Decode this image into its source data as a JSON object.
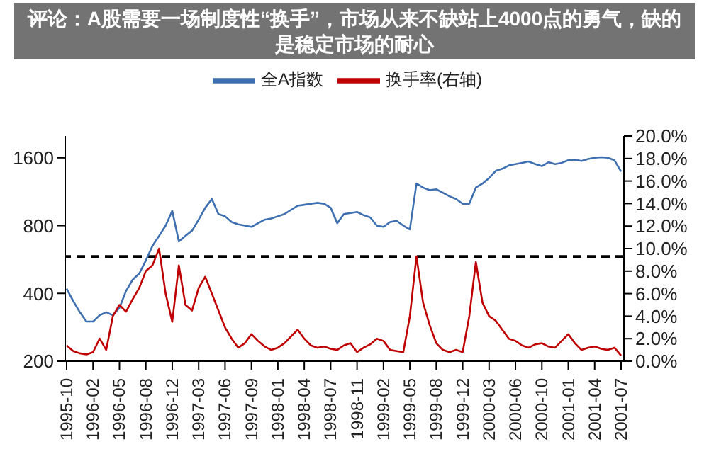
{
  "chart_data": {
    "type": "line",
    "categories": [
      "1995-10",
      null,
      null,
      null,
      "1996-02",
      null,
      null,
      null,
      "1996-05",
      null,
      null,
      null,
      "1996-08",
      null,
      null,
      null,
      "1996-12",
      null,
      null,
      null,
      "1997-03",
      null,
      null,
      null,
      "1997-06",
      null,
      null,
      null,
      "1997-09",
      null,
      null,
      null,
      "1998-01",
      null,
      null,
      null,
      "1998-04",
      null,
      null,
      null,
      "1998-07",
      null,
      null,
      null,
      "1998-11",
      null,
      null,
      null,
      "1999-02",
      null,
      null,
      null,
      "1999-05",
      null,
      null,
      null,
      "1999-08",
      null,
      null,
      null,
      "1999-12",
      null,
      null,
      null,
      "2000-03",
      null,
      null,
      null,
      "2000-06",
      null,
      null,
      null,
      "2000-10",
      null,
      null,
      null,
      "2001-01",
      null,
      null,
      null,
      "2001-04",
      null,
      null,
      null,
      "2001-07"
    ],
    "series": [
      {
        "name": "全A指数",
        "color": "#3e6fb0",
        "values": [
          420,
          370,
          330,
          300,
          300,
          320,
          330,
          320,
          345,
          410,
          460,
          490,
          560,
          650,
          720,
          800,
          930,
          680,
          720,
          760,
          850,
          960,
          1050,
          900,
          880,
          830,
          810,
          800,
          790,
          820,
          850,
          860,
          880,
          900,
          940,
          980,
          990,
          1000,
          1010,
          1000,
          960,
          820,
          900,
          910,
          920,
          890,
          870,
          800,
          790,
          830,
          840,
          800,
          770,
          1230,
          1180,
          1150,
          1160,
          1120,
          1080,
          1050,
          1000,
          1000,
          1180,
          1230,
          1300,
          1400,
          1430,
          1480,
          1500,
          1520,
          1540,
          1500,
          1470,
          1530,
          1500,
          1520,
          1560,
          1570,
          1550,
          1580,
          1600,
          1610,
          1600,
          1560,
          1390
        ]
      },
      {
        "name": "换手率(右轴)",
        "color": "#c00000",
        "axis": "y2",
        "values": [
          1.4,
          0.9,
          0.7,
          0.6,
          0.8,
          2.0,
          1.0,
          4.0,
          5.0,
          4.4,
          5.5,
          6.5,
          8.0,
          8.5,
          10.0,
          6.0,
          3.5,
          8.5,
          5.0,
          4.5,
          6.5,
          7.5,
          6.0,
          4.5,
          3.0,
          2.0,
          1.2,
          1.6,
          2.4,
          1.8,
          1.3,
          1.0,
          1.2,
          1.6,
          2.2,
          2.8,
          2.0,
          1.4,
          1.2,
          1.3,
          1.1,
          1.0,
          1.4,
          1.6,
          0.8,
          1.2,
          1.5,
          2.0,
          1.8,
          1.0,
          0.9,
          0.8,
          4.0,
          9.3,
          5.2,
          3.2,
          1.6,
          1.0,
          0.8,
          1.0,
          0.8,
          4.0,
          8.8,
          5.2,
          4.0,
          3.6,
          2.8,
          2.0,
          1.8,
          1.4,
          1.2,
          1.5,
          1.6,
          1.3,
          1.2,
          1.8,
          2.4,
          1.6,
          1.0,
          1.2,
          1.3,
          1.1,
          1.0,
          1.2,
          0.5
        ]
      }
    ],
    "log": "y",
    "ylim": [
      200,
      2000
    ],
    "yticks": [
      200,
      400,
      800,
      1600
    ],
    "y2lim": [
      0,
      20
    ],
    "y2ticks": [
      {
        "value": 0,
        "label": "0.0%"
      },
      {
        "value": 2,
        "label": "2.0%"
      },
      {
        "value": 4,
        "label": "4.0%"
      },
      {
        "value": 6,
        "label": "6.0%"
      },
      {
        "value": 8,
        "label": "8.0%"
      },
      {
        "value": 10,
        "label": "10.0%"
      },
      {
        "value": 12,
        "label": "12.0%"
      },
      {
        "value": 14,
        "label": "14.0%"
      },
      {
        "value": 16,
        "label": "16.0%"
      },
      {
        "value": 18,
        "label": "18.0%"
      },
      {
        "value": 20,
        "label": "20.0%"
      }
    ],
    "ref_lines": [
      {
        "axis": "y2",
        "value": 9.3,
        "color": "#000000",
        "line_style": "dashed"
      }
    ],
    "grid": false,
    "legend": "top",
    "marker": "none",
    "line_style": "solid",
    "annotations": [
      "评论：A股需要一场制度性“换手”，市场从来不缺站上4000点的勇气，缺的是稳定市场的耐心"
    ]
  }
}
